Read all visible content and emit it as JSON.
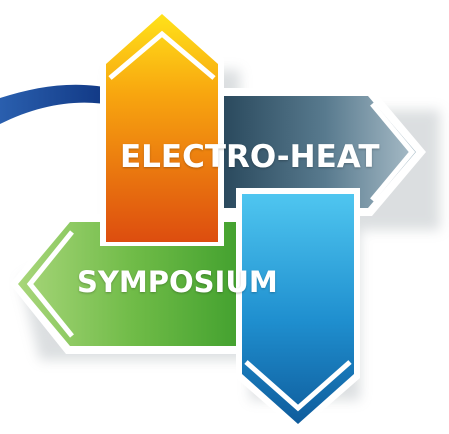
{
  "logo": {
    "line1": "ELECTRO-HEAT",
    "line2": "SYMPOSIUM"
  },
  "colors": {
    "orange_top": "#ffe21a",
    "orange_bottom": "#dd4d0f",
    "slate_dark": "#2a4a5e",
    "slate_light": "#a9bdc8",
    "green_light": "#a8d67a",
    "green_dark": "#3e9e2c",
    "blue_light": "#4fc6f0",
    "blue_dark": "#0f5c9c",
    "swoosh": "#123f8c"
  }
}
